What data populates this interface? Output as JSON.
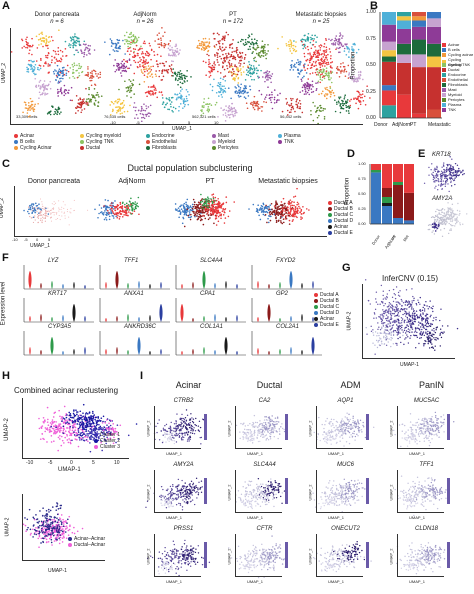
{
  "panelA": {
    "letter": "A",
    "titles": [
      {
        "name": "Donor pancreata",
        "n": "n = 6",
        "cells": "33,309 cells"
      },
      {
        "name": "AdjNorm",
        "n": "n = 26",
        "cells": "76,535 cells"
      },
      {
        "name": "PT",
        "n": "n = 172",
        "cells": "562,321 cells"
      },
      {
        "name": "Metastatic biopsies",
        "n": "n = 25",
        "cells": "56,442 cells"
      }
    ],
    "xlabel": "UMAP_1",
    "ylabel": "UMAP_2",
    "ticks": [
      "-10",
      "-5",
      "0",
      "5",
      "10"
    ],
    "legend": [
      {
        "label": "Acinar",
        "color": "#e8393b"
      },
      {
        "label": "B cells",
        "color": "#3a78c2"
      },
      {
        "label": "Cycling Acinar",
        "color": "#f2993b"
      },
      {
        "label": "Cycling myeloid",
        "color": "#f4c542"
      },
      {
        "label": "Cycling TNK",
        "color": "#8cc462"
      },
      {
        "label": "Ductal",
        "color": "#c6312f"
      },
      {
        "label": "Endocrine",
        "color": "#2ea2a0"
      },
      {
        "label": "Endothelial",
        "color": "#d8503c"
      },
      {
        "label": "Fibroblasts",
        "color": "#1c6b3c"
      },
      {
        "label": "Mast",
        "color": "#9a5aa8"
      },
      {
        "label": "Myeloid",
        "color": "#c7a3d0"
      },
      {
        "label": "Pericytes",
        "color": "#5b8a2e"
      },
      {
        "label": "Plasma",
        "color": "#4fb0d8"
      },
      {
        "label": "TNK",
        "color": "#8e3b97"
      }
    ]
  },
  "panelB": {
    "letter": "B",
    "ylabel": "Proportion",
    "categories": [
      "Donor",
      "AdjNorm",
      "PT",
      "Metastatic"
    ],
    "legend": [
      {
        "label": "Acinar",
        "color": "#e8393b"
      },
      {
        "label": "B cells",
        "color": "#3a78c2"
      },
      {
        "label": "Cycling acinar",
        "color": "#f2993b"
      },
      {
        "label": "Cycling myeloid",
        "color": "#f4c542"
      },
      {
        "label": "Cycling TNK",
        "color": "#8cc462"
      },
      {
        "label": "Ductal",
        "color": "#c6312f"
      },
      {
        "label": "Endocrine",
        "color": "#2ea2a0"
      },
      {
        "label": "Endothelial",
        "color": "#d8503c"
      },
      {
        "label": "Fibroblasts",
        "color": "#1c6b3c"
      },
      {
        "label": "Mast",
        "color": "#9a5aa8"
      },
      {
        "label": "Myeloid",
        "color": "#c7a3d0"
      },
      {
        "label": "Pericytes",
        "color": "#5b8a2e"
      },
      {
        "label": "Plasma",
        "color": "#4fb0d8"
      },
      {
        "label": "TNK",
        "color": "#8e3b97"
      }
    ]
  },
  "panelC": {
    "letter": "C",
    "title": "Ductal population subclustering",
    "subtitles": [
      "Donor pancreata",
      "AdjNorm",
      "PT",
      "Metastatic biopsies"
    ],
    "xlabel": "UMAP_1",
    "ylabel": "UMAP_2",
    "ticks": [
      "-10",
      "-5",
      "0",
      "5"
    ],
    "legend": [
      {
        "label": "Ductal A",
        "color": "#e8393b"
      },
      {
        "label": "Ductal B",
        "color": "#8b1a1a"
      },
      {
        "label": "Ductal C",
        "color": "#2e9a4a"
      },
      {
        "label": "Ductal D",
        "color": "#3a78c2"
      },
      {
        "label": "Acinar",
        "color": "#1a1a1a"
      },
      {
        "label": "Ductal E",
        "color": "#2b3fa0"
      }
    ]
  },
  "panelD": {
    "letter": "D",
    "ylabel": "Proportion",
    "categories": [
      "Donor",
      "AdjNorm",
      "PT",
      "Met"
    ],
    "ticks": [
      "0.00",
      "0.25",
      "0.50",
      "0.75",
      "1.00"
    ]
  },
  "panelE": {
    "letter": "E",
    "genes": [
      "KRT18",
      "AMY2A"
    ]
  },
  "panelF": {
    "letter": "F",
    "ylabel": "Expression level",
    "genes": [
      "LYZ",
      "TFF1",
      "SLC4A4",
      "FXYD2",
      "KRT17",
      "ANXA1",
      "CPA1",
      "GP2",
      "CYP3A5",
      "ANKRD36C",
      "COL1A1",
      "COL2A1"
    ],
    "legend": [
      {
        "label": "Ductal A",
        "color": "#e8393b"
      },
      {
        "label": "Ductal B",
        "color": "#8b1a1a"
      },
      {
        "label": "Ductal C",
        "color": "#2e9a4a"
      },
      {
        "label": "Ductal D",
        "color": "#3a78c2"
      },
      {
        "label": "Acinar",
        "color": "#1a1a1a"
      },
      {
        "label": "Ductal E",
        "color": "#2b3fa0"
      }
    ]
  },
  "panelG": {
    "letter": "G",
    "title": "InferCNV (0.15)",
    "xlabel": "UMAP-1",
    "ylabel": "UMAP-2"
  },
  "panelH": {
    "letter": "H",
    "title": "Combined acinar reclustering",
    "xlabel": "UMAP-1",
    "ylabel": "UMAP-2",
    "ticks": [
      "-10",
      "-5",
      "0",
      "5",
      "10"
    ],
    "legend_top": [
      {
        "label": "Cluster 1",
        "color": "#3a2fb0"
      },
      {
        "label": "Cluster 2",
        "color": "#1515a0"
      },
      {
        "label": "Cluster 3",
        "color": "#ef5fd8"
      }
    ],
    "legend_bottom": [
      {
        "label": "Acinar–Acinar",
        "color": "#2a2a8a"
      },
      {
        "label": "Ductal–Acinar",
        "color": "#ef5fd8"
      }
    ]
  },
  "panelI": {
    "letter": "I",
    "columns": [
      "Acinar",
      "Ductal",
      "ADM",
      "PanIN"
    ],
    "genes": [
      [
        "CTRB2",
        "CA2",
        "AQP1",
        "MUC5AC"
      ],
      [
        "AMY2A",
        "SLC4A4",
        "MUC6",
        "TFF1"
      ],
      [
        "PRSS1",
        "CFTR",
        "ONECUT2",
        "CLDN18"
      ]
    ],
    "xlabel": "UMAP_1",
    "ylabel": "UMAP_2"
  }
}
